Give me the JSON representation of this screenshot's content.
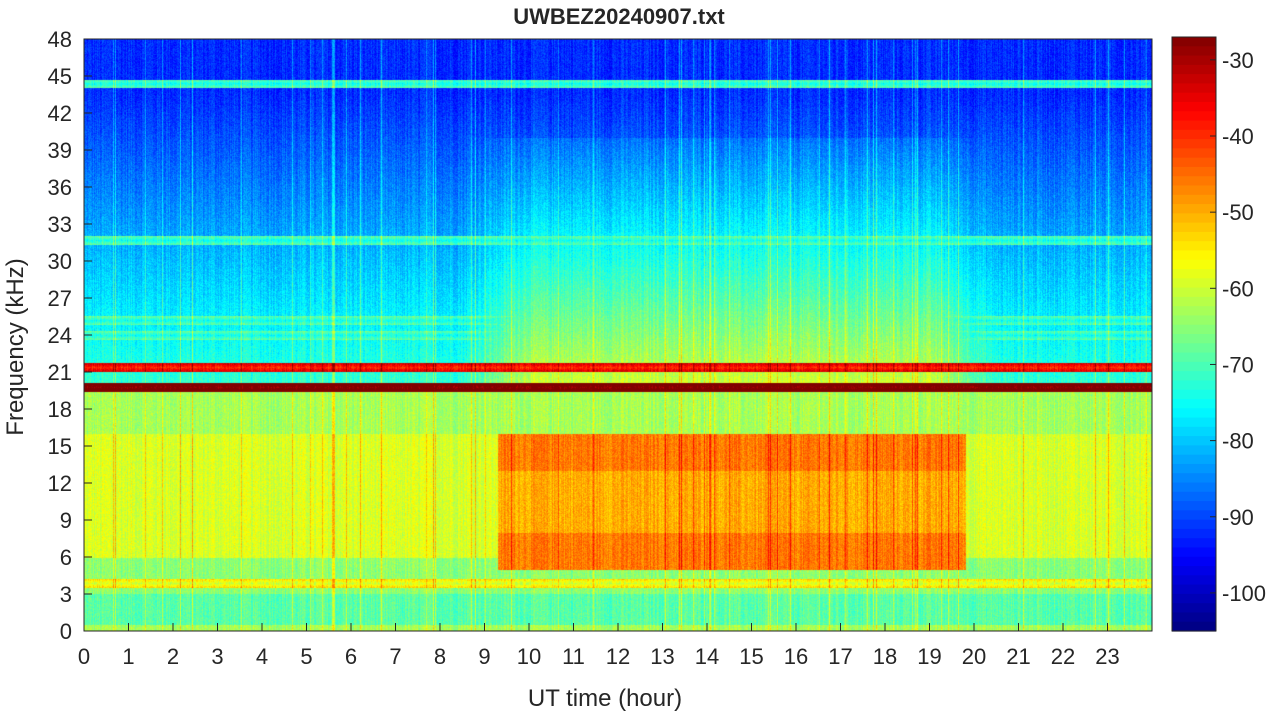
{
  "chart_data": {
    "type": "heatmap",
    "title": "UWBEZ20240907.txt",
    "xlabel": "UT time (hour)",
    "ylabel": "Frequency (kHz)",
    "xlim": [
      0,
      24
    ],
    "ylim": [
      0,
      48
    ],
    "xticks": [
      0,
      1,
      2,
      3,
      4,
      5,
      6,
      7,
      8,
      9,
      10,
      11,
      12,
      13,
      14,
      15,
      16,
      17,
      18,
      19,
      20,
      21,
      22,
      23
    ],
    "yticks": [
      0,
      3,
      6,
      9,
      12,
      15,
      18,
      21,
      24,
      27,
      30,
      33,
      36,
      39,
      42,
      45,
      48
    ],
    "colorbar": {
      "range": [
        -105,
        -27
      ],
      "ticks": [
        -30,
        -40,
        -50,
        -60,
        -70,
        -80,
        -90,
        -100
      ],
      "colormap": "jet"
    },
    "features": {
      "transmitter_lines_khz": [
        19.8,
        21.4,
        24.0,
        25.2,
        3.9,
        44.4,
        31.7
      ],
      "daytime_emission": {
        "start_hour": 9.3,
        "end_hour": 19.8,
        "low_khz": 6,
        "high_khz": 16,
        "level_db": -50
      },
      "background_high_khz_level_db": -92,
      "background_low_khz_level_db": -65
    },
    "grid": false,
    "legend": "none"
  }
}
